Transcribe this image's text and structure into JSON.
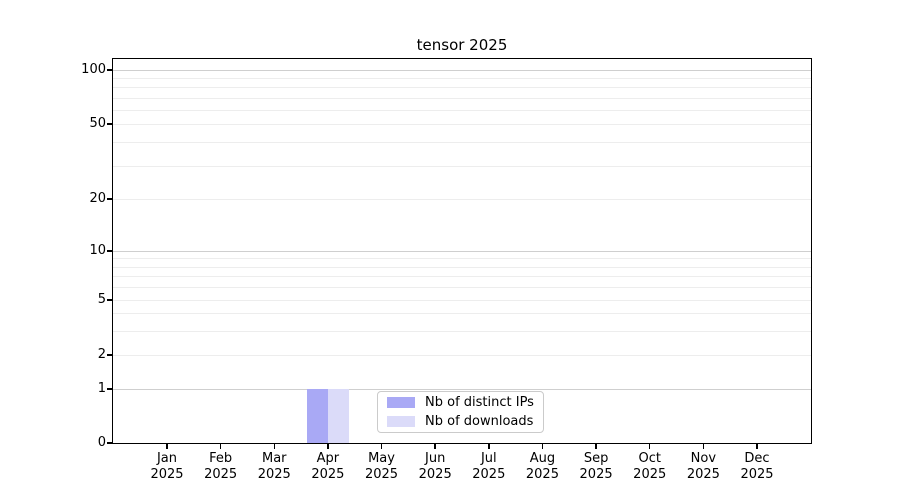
{
  "chart_data": {
    "type": "bar",
    "title": "tensor 2025",
    "year": "2025",
    "categories": [
      "Jan",
      "Feb",
      "Mar",
      "Apr",
      "May",
      "Jun",
      "Jul",
      "Aug",
      "Sep",
      "Oct",
      "Nov",
      "Dec"
    ],
    "x_tick_labels": [
      "Jan 2025",
      "Feb 2025",
      "Mar 2025",
      "Apr 2025",
      "May 2025",
      "Jun 2025",
      "Jul 2025",
      "Aug 2025",
      "Sep 2025",
      "Oct 2025",
      "Nov 2025",
      "Dec 2025"
    ],
    "series": [
      {
        "name": "Nb of distinct IPs",
        "color": "#a9a9f5",
        "values": [
          0,
          0,
          0,
          1,
          0,
          0,
          0,
          0,
          0,
          0,
          0,
          0
        ]
      },
      {
        "name": "Nb of downloads",
        "color": "#dbdbf9",
        "values": [
          0,
          0,
          0,
          1,
          0,
          0,
          0,
          0,
          0,
          0,
          0,
          0
        ]
      }
    ],
    "yscale": "symlog",
    "ylim": [
      0,
      110
    ],
    "y_tick_values": [
      0,
      1,
      2,
      5,
      10,
      20,
      50,
      100
    ],
    "y_tick_labels": [
      "0",
      "1",
      "2",
      "5",
      "10",
      "20",
      "50",
      "100"
    ],
    "y_major_gridlines": [
      1,
      10,
      100
    ],
    "y_minor_gridlines": [
      2,
      3,
      4,
      5,
      6,
      7,
      8,
      9,
      20,
      30,
      40,
      50,
      60,
      70,
      80,
      90
    ],
    "grid": true,
    "legend_position": "lower center",
    "axis_color": "#000000",
    "major_grid_color": "#cfcfcf",
    "minor_grid_color": "#ededed"
  }
}
